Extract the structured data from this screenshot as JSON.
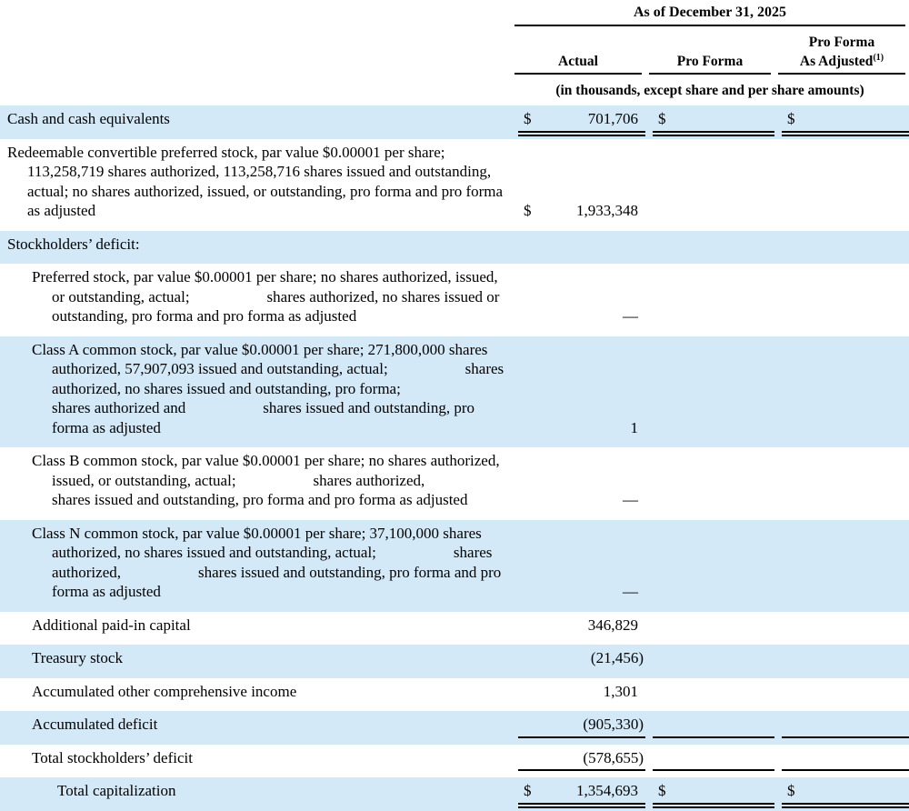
{
  "colors": {
    "row_highlight": "#d3e9f8",
    "rule": "#000000",
    "leader_dots": "#8ea6b8"
  },
  "table": {
    "header": {
      "as_of": "As of December 31, 2025",
      "note": "(in thousands, except share and per share amounts)",
      "columns": [
        {
          "line1": "Actual",
          "line2": "",
          "sup": ""
        },
        {
          "line1": "Pro Forma",
          "line2": "",
          "sup": ""
        },
        {
          "line1": "Pro Forma",
          "line2": "As Adjusted",
          "sup": "(1)"
        }
      ]
    },
    "rows": [
      {
        "label": "Cash and cash equivalents",
        "cells": {
          "actual": {
            "dollar": "$",
            "value": "701,706"
          },
          "proforma": {
            "dollar": "$"
          },
          "adjusted": {
            "dollar": "$"
          }
        }
      },
      {
        "label": "Redeemable convertible preferred stock, par value $0.00001 per share; 113,258,719 shares authorized, 113,258,716 shares issued and outstanding, actual; no shares authorized, issued, or outstanding, pro forma and pro forma as adjusted",
        "cells": {
          "actual": {
            "dollar": "$",
            "value": "1,933,348"
          }
        }
      },
      {
        "label": "Stockholders’ deficit:",
        "cells": {}
      },
      {
        "label": "Preferred stock, par value $0.00001 per share; no shares authorized, issued, or outstanding, actual;                    shares authorized, no shares issued or outstanding, pro forma and pro forma as adjusted",
        "cells": {
          "actual": {
            "value": "—"
          }
        }
      },
      {
        "label": "Class A common stock, par value $0.00001 per share; 271,800,000 shares authorized, 57,907,093 issued and outstanding, actual;                    shares authorized, no shares issued and outstanding, pro forma;                    shares authorized and                    shares issued and outstanding, pro forma as adjusted",
        "cells": {
          "actual": {
            "value": "1"
          }
        }
      },
      {
        "label": "Class B common stock, par value $0.00001 per share; no shares authorized, issued, or outstanding, actual;                    shares authorized,                    shares issued and outstanding, pro forma and pro forma as adjusted",
        "cells": {
          "actual": {
            "value": "—"
          }
        }
      },
      {
        "label": "Class N common stock, par value $0.00001 per share; 37,100,000 shares authorized, no shares issued and outstanding, actual;                    shares authorized,                    shares issued and outstanding, pro forma and pro forma as adjusted",
        "cells": {
          "actual": {
            "value": "—"
          }
        }
      },
      {
        "label": "Additional paid-in capital",
        "cells": {
          "actual": {
            "value": "346,829"
          }
        }
      },
      {
        "label": "Treasury stock",
        "cells": {
          "actual": {
            "value": "(21,456)"
          }
        }
      },
      {
        "label": "Accumulated other comprehensive income",
        "cells": {
          "actual": {
            "value": "1,301"
          }
        }
      },
      {
        "label": "Accumulated deficit",
        "cells": {
          "actual": {
            "value": "(905,330)"
          }
        }
      },
      {
        "label": "Total stockholders’ deficit",
        "cells": {
          "actual": {
            "value": "(578,655)"
          }
        }
      },
      {
        "label": "Total capitalization",
        "cells": {
          "actual": {
            "dollar": "$",
            "value": "1,354,693"
          },
          "proforma": {
            "dollar": "$"
          },
          "adjusted": {
            "dollar": "$"
          }
        }
      }
    ]
  }
}
